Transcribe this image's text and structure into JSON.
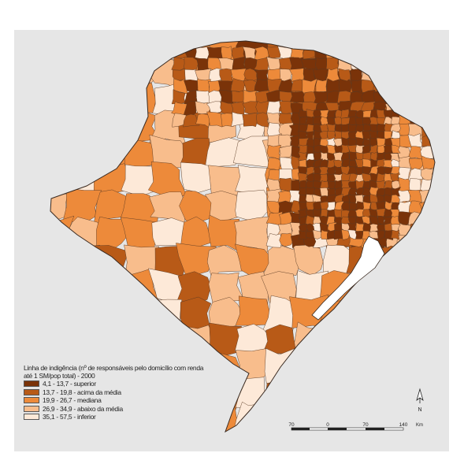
{
  "legend": {
    "title_line1": "Linha de indigência (nº de responsáveis pelo domicílio com renda",
    "title_line2": "até 1 SM/pop total) - 2000",
    "classes": [
      {
        "label": "4,1 - 13,7 - superior",
        "color": "#7a3309"
      },
      {
        "label": "13,7 - 19,8 - acima da média",
        "color": "#b85a17"
      },
      {
        "label": "19,9 - 26,7 - mediana",
        "color": "#ed8a3a"
      },
      {
        "label": "26,9 - 34,9 - abaixo da média",
        "color": "#f8bd8c"
      },
      {
        "label": "35,1 - 57,5 - inferior",
        "color": "#fde9d8"
      }
    ]
  },
  "scale_bar": {
    "ticks": [
      "70",
      "0",
      "70",
      "140"
    ],
    "unit": "Km"
  },
  "north_arrow": {
    "label": "N"
  },
  "colors": {
    "background": "#e6e6e6",
    "border": "#3a2a20"
  }
}
